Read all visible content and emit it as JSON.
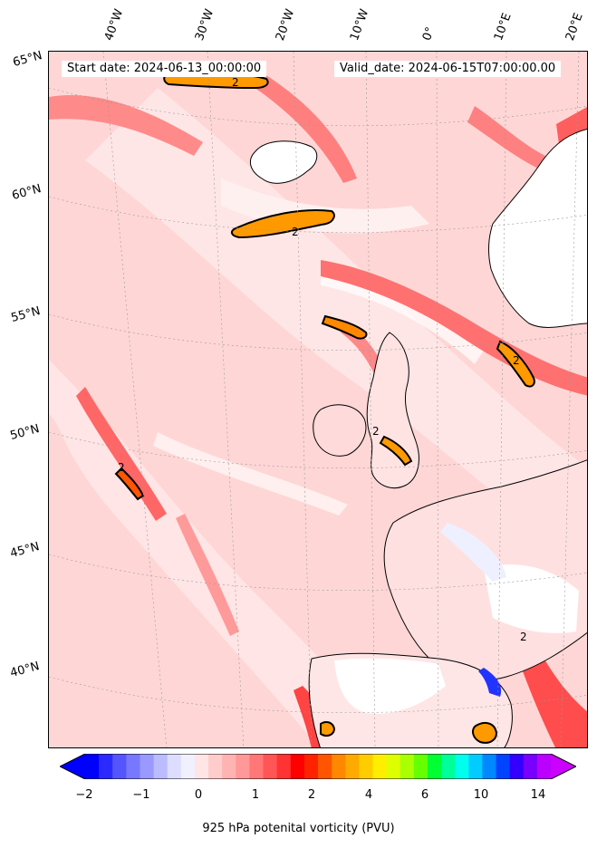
{
  "header": {
    "start_date": "Start date: 2024-06-13_00:00:00",
    "valid_date": "Valid_date: 2024-06-15T07:00:00.00"
  },
  "graticule": {
    "lon_labels": [
      "40°W",
      "30°W",
      "20°W",
      "10°W",
      "0°",
      "10°E",
      "20°E"
    ],
    "lat_labels": [
      "65°N",
      "60°N",
      "55°N",
      "50°N",
      "45°N",
      "40°N"
    ]
  },
  "contour_label": "2",
  "colorbar": {
    "label": "925 hPa potenital vorticity (PVU)",
    "ticks": [
      "−2",
      "−1",
      "0",
      "1",
      "2",
      "4",
      "6",
      "10",
      "14"
    ],
    "colors": [
      "#0000ff",
      "#2a2aff",
      "#5555ff",
      "#7777ff",
      "#9999ff",
      "#bbbbff",
      "#ddddff",
      "#f0f0ff",
      "#ffe5e5",
      "#ffcccc",
      "#ffb3b3",
      "#ff9999",
      "#ff7777",
      "#ff5555",
      "#ff3333",
      "#ff0000",
      "#ff2200",
      "#ff5500",
      "#ff8800",
      "#ffaa00",
      "#ffcc00",
      "#ffee00",
      "#ddff00",
      "#aaff00",
      "#66ff00",
      "#00ff33",
      "#00ff99",
      "#00ffee",
      "#00ccff",
      "#0088ff",
      "#0044ff",
      "#3300ff",
      "#7700ff",
      "#bb00ff"
    ],
    "min_color": "#0000ff",
    "max_color": "#cc00ff"
  }
}
